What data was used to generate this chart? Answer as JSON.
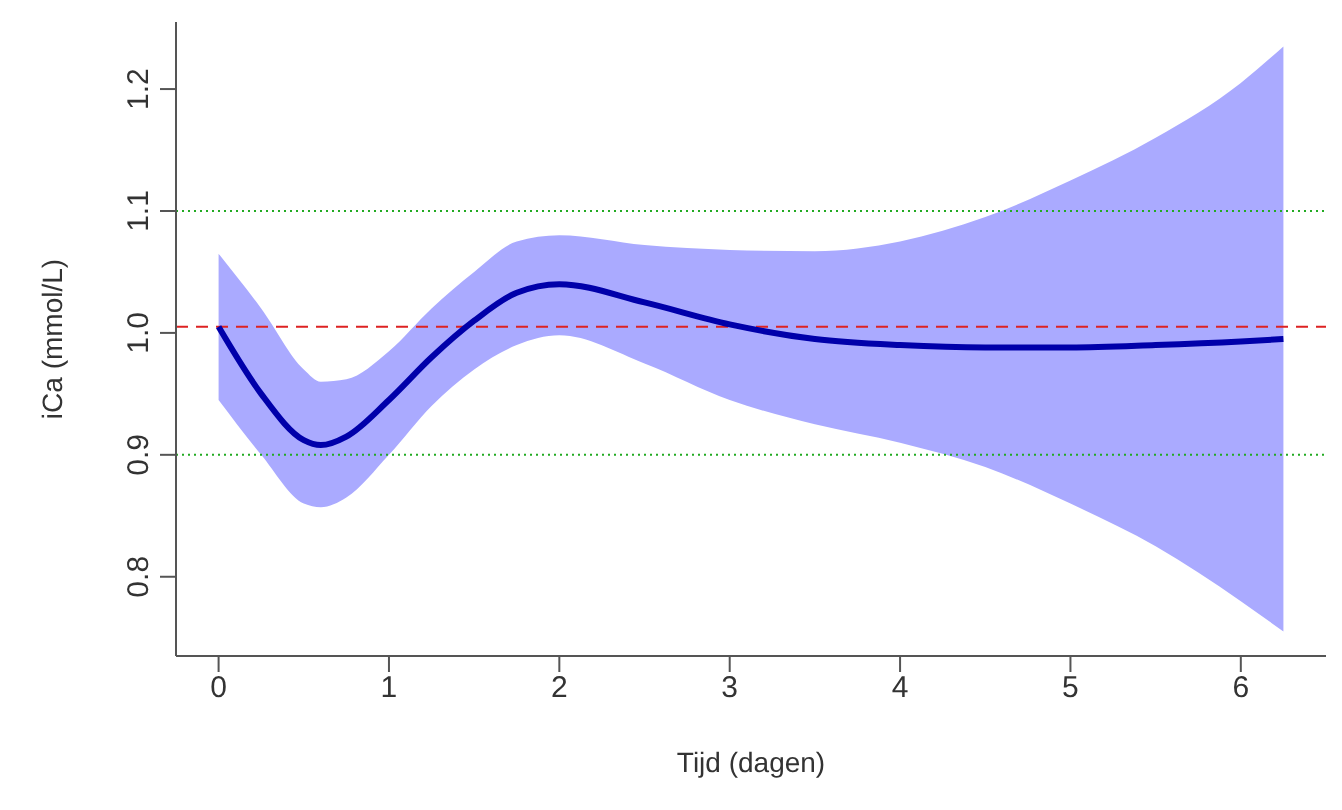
{
  "chart_data": {
    "type": "line",
    "xlabel": "Tijd (dagen)",
    "ylabel": "iCa (mmol/L)",
    "x": [
      0,
      0.25,
      0.5,
      0.6,
      0.75,
      1,
      1.25,
      1.5,
      1.75,
      2,
      2.5,
      3,
      3.5,
      4,
      4.5,
      5,
      5.5,
      6,
      6.25
    ],
    "series": [
      {
        "color": "#0000aa",
        "values": [
          1.005,
          0.95,
          0.912,
          0.908,
          0.915,
          0.945,
          0.98,
          1.01,
          1.033,
          1.04,
          1.025,
          1.007,
          0.995,
          0.99,
          0.988,
          0.988,
          0.99,
          0.993,
          0.995
        ],
        "lower": [
          0.945,
          0.9,
          0.86,
          0.857,
          0.865,
          0.9,
          0.94,
          0.97,
          0.99,
          0.998,
          0.975,
          0.945,
          0.925,
          0.91,
          0.89,
          0.86,
          0.825,
          0.78,
          0.755
        ],
        "upper": [
          1.065,
          1.02,
          0.97,
          0.96,
          0.962,
          0.985,
          1.02,
          1.05,
          1.075,
          1.08,
          1.072,
          1.068,
          1.067,
          1.075,
          1.095,
          1.125,
          1.16,
          1.205,
          1.235
        ]
      }
    ],
    "xlim": [
      -0.25,
      6.5
    ],
    "ylim": [
      0.735,
      1.255
    ],
    "xticks": [
      0,
      1,
      2,
      3,
      4,
      5,
      6
    ],
    "yticks": [
      0.8,
      0.9,
      {
        "value": 1,
        "label": "1.0"
      },
      1.1,
      1.2
    ],
    "ref_lines": [
      {
        "axis": "y",
        "value": 1.1,
        "color": "#22aa22",
        "line_style": "dotted"
      },
      {
        "axis": "y",
        "value": 0.9,
        "color": "#22aa22",
        "line_style": "dotted"
      },
      {
        "axis": "y",
        "value": 1.005,
        "color": "#dd2222",
        "line_style": "dashed"
      }
    ],
    "grid": false,
    "legend": false,
    "marker": "none",
    "line_style": "solid"
  }
}
